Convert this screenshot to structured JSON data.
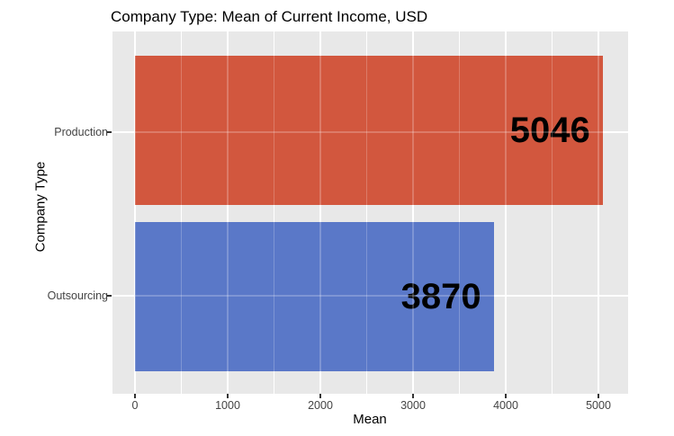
{
  "figure": {
    "title": "Company Type: Mean of Current Income, USD"
  },
  "chart_data": {
    "type": "bar",
    "orientation": "horizontal",
    "title": "Company Type: Mean of Current Income, USD",
    "xlabel": "Mean",
    "ylabel": "Company Type",
    "categories": [
      "Production",
      "Outsourcing"
    ],
    "values": [
      5046,
      3870
    ],
    "bar_labels": [
      "5046",
      "3870"
    ],
    "bar_colors": [
      "#d2573e",
      "#5a78c8"
    ],
    "x_ticks": [
      0,
      1000,
      2000,
      3000,
      4000,
      5000
    ],
    "x_tick_labels": [
      "0",
      "1000",
      "2000",
      "3000",
      "4000",
      "5000"
    ],
    "x_minor_grid_step": 500,
    "xlim": [
      -250,
      5320
    ],
    "legend": "none",
    "grid": true,
    "panel_background": "#e8e8e8",
    "gridline_color": "#ffffff",
    "tick_text_color": "#444444",
    "value_label_color": "#000000"
  }
}
